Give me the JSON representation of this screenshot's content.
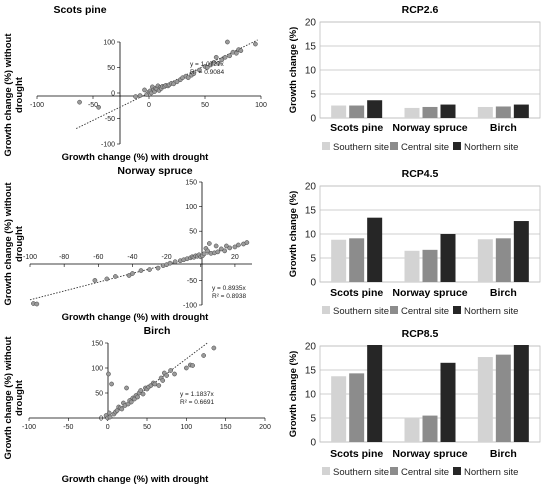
{
  "chart_data": [
    {
      "type": "scatter",
      "title": "Scots pine",
      "xlabel": "Growth change (%) with drought",
      "ylabel": "Growth change (%) without drought",
      "xlim": [
        -100,
        100
      ],
      "ylim": [
        -100,
        100
      ],
      "xticks": [
        -100,
        -50,
        0,
        50,
        100
      ],
      "yticks": [
        -100,
        -50,
        0,
        50,
        100
      ],
      "equation": "y = 1.0727x",
      "r2": "R² = 0.9084",
      "trend_slope": 1.0727,
      "trend_range": [
        -65,
        97
      ],
      "points": [
        [
          -62,
          -18
        ],
        [
          -45,
          -28
        ],
        [
          -12,
          -7
        ],
        [
          -8,
          -5
        ],
        [
          -4,
          6
        ],
        [
          -2,
          -3
        ],
        [
          0,
          2
        ],
        [
          1,
          4
        ],
        [
          2,
          0
        ],
        [
          3,
          12
        ],
        [
          4,
          6
        ],
        [
          5,
          3
        ],
        [
          6,
          9
        ],
        [
          7,
          8
        ],
        [
          8,
          14
        ],
        [
          9,
          5
        ],
        [
          10,
          11
        ],
        [
          11,
          9
        ],
        [
          12,
          13
        ],
        [
          14,
          13
        ],
        [
          15,
          15
        ],
        [
          17,
          14
        ],
        [
          18,
          16
        ],
        [
          20,
          19
        ],
        [
          22,
          18
        ],
        [
          25,
          22
        ],
        [
          28,
          26
        ],
        [
          30,
          30
        ],
        [
          33,
          33
        ],
        [
          35,
          30
        ],
        [
          38,
          35
        ],
        [
          40,
          38
        ],
        [
          45,
          45
        ],
        [
          50,
          52
        ],
        [
          52,
          50
        ],
        [
          55,
          55
        ],
        [
          58,
          60
        ],
        [
          60,
          70
        ],
        [
          62,
          58
        ],
        [
          65,
          65
        ],
        [
          68,
          70
        ],
        [
          70,
          100
        ],
        [
          72,
          73
        ],
        [
          75,
          80
        ],
        [
          78,
          78
        ],
        [
          80,
          85
        ],
        [
          82,
          83
        ],
        [
          95,
          96
        ]
      ]
    },
    {
      "type": "scatter",
      "title": "Norway spruce",
      "xlabel": "Growth change (%) with drought",
      "ylabel": "Growth change (%) without drought",
      "xlim": [
        -100,
        30
      ],
      "ylim": [
        -100,
        150
      ],
      "xticks": [
        -100,
        -80,
        -60,
        -40,
        -20,
        0,
        20
      ],
      "yticks": [
        -100,
        -50,
        50,
        100,
        150
      ],
      "equation": "y = 0.8935x",
      "r2": "R² = 0.8938",
      "trend_slope": 0.8935,
      "trend_range": [
        -100,
        28
      ],
      "points": [
        [
          -98,
          -97
        ],
        [
          -96,
          -98
        ],
        [
          -62,
          -50
        ],
        [
          -55,
          -47
        ],
        [
          -50,
          -42
        ],
        [
          -42,
          -40
        ],
        [
          -40,
          -36
        ],
        [
          -35,
          -30
        ],
        [
          -30,
          -28
        ],
        [
          -25,
          -25
        ],
        [
          -22,
          -20
        ],
        [
          -20,
          -18
        ],
        [
          -18,
          -15
        ],
        [
          -15,
          -12
        ],
        [
          -12,
          -10
        ],
        [
          -10,
          -8
        ],
        [
          -8,
          -6
        ],
        [
          -6,
          -4
        ],
        [
          -5,
          -2
        ],
        [
          -4,
          -3
        ],
        [
          -3,
          0
        ],
        [
          -2,
          -1
        ],
        [
          -1,
          2
        ],
        [
          0,
          -2
        ],
        [
          1,
          0
        ],
        [
          2,
          4
        ],
        [
          3,
          15
        ],
        [
          4,
          10
        ],
        [
          5,
          25
        ],
        [
          6,
          5
        ],
        [
          8,
          6
        ],
        [
          9,
          20
        ],
        [
          10,
          8
        ],
        [
          12,
          14
        ],
        [
          14,
          10
        ],
        [
          15,
          20
        ],
        [
          17,
          16
        ],
        [
          20,
          18
        ],
        [
          22,
          22
        ],
        [
          25,
          24
        ],
        [
          27,
          27
        ]
      ]
    },
    {
      "type": "scatter",
      "title": "Birch",
      "xlabel": "Growth change (%) with drought",
      "ylabel": "Growth change (%) without drought",
      "xlim": [
        -100,
        200
      ],
      "ylim": [
        0,
        150
      ],
      "xticks": [
        -100,
        -50,
        0,
        50,
        100,
        150,
        200
      ],
      "yticks": [
        0,
        50,
        100,
        150
      ],
      "equation": "y = 1.1837x",
      "r2": "R² = 0.6691",
      "trend_slope": 1.1837,
      "trend_range": [
        0,
        127
      ],
      "points": [
        [
          -2,
          5
        ],
        [
          0,
          0
        ],
        [
          1,
          88
        ],
        [
          2,
          10
        ],
        [
          3,
          2
        ],
        [
          5,
          68
        ],
        [
          8,
          8
        ],
        [
          10,
          12
        ],
        [
          12,
          15
        ],
        [
          14,
          22
        ],
        [
          16,
          20
        ],
        [
          18,
          18
        ],
        [
          20,
          30
        ],
        [
          22,
          25
        ],
        [
          24,
          60
        ],
        [
          26,
          28
        ],
        [
          28,
          35
        ],
        [
          30,
          32
        ],
        [
          32,
          40
        ],
        [
          34,
          38
        ],
        [
          36,
          45
        ],
        [
          38,
          42
        ],
        [
          40,
          50
        ],
        [
          42,
          55
        ],
        [
          45,
          48
        ],
        [
          48,
          60
        ],
        [
          50,
          58
        ],
        [
          52,
          62
        ],
        [
          55,
          65
        ],
        [
          58,
          70
        ],
        [
          60,
          68
        ],
        [
          65,
          65
        ],
        [
          68,
          80
        ],
        [
          70,
          75
        ],
        [
          72,
          90
        ],
        [
          75,
          85
        ],
        [
          80,
          95
        ],
        [
          85,
          88
        ],
        [
          100,
          100
        ],
        [
          105,
          106
        ],
        [
          108,
          105
        ],
        [
          122,
          125
        ],
        [
          135,
          140
        ]
      ]
    },
    {
      "type": "bar",
      "title": "RCP2.6",
      "ylabel": "Growth change (%)",
      "ylim": [
        0,
        20
      ],
      "yticks": [
        0,
        5,
        10,
        15,
        20
      ],
      "categories": [
        "Scots pine",
        "Norway spruce",
        "Birch"
      ],
      "series": [
        {
          "name": "Southern site",
          "values": [
            2.6,
            2.1,
            2.3
          ]
        },
        {
          "name": "Central site",
          "values": [
            2.6,
            2.3,
            2.4
          ]
        },
        {
          "name": "Northern site",
          "values": [
            3.7,
            2.8,
            2.8
          ]
        }
      ],
      "legend": "bottom"
    },
    {
      "type": "bar",
      "title": "RCP4.5",
      "ylabel": "Growth change (%)",
      "ylim": [
        0,
        20
      ],
      "yticks": [
        0,
        5,
        10,
        15,
        20
      ],
      "categories": [
        "Scots pine",
        "Norway spruce",
        "Birch"
      ],
      "series": [
        {
          "name": "Southern site",
          "values": [
            8.8,
            6.5,
            8.9
          ]
        },
        {
          "name": "Central site",
          "values": [
            9.1,
            6.7,
            9.1
          ]
        },
        {
          "name": "Northern site",
          "values": [
            13.4,
            10.0,
            12.7
          ]
        }
      ],
      "legend": "bottom"
    },
    {
      "type": "bar",
      "title": "RCP8.5",
      "ylabel": "Growth change (%)",
      "ylim": [
        0,
        20
      ],
      "yticks": [
        0,
        5,
        10,
        15,
        20
      ],
      "categories": [
        "Scots pine",
        "Norway spruce",
        "Birch"
      ],
      "series": [
        {
          "name": "Southern site",
          "values": [
            13.7,
            5.0,
            17.7
          ]
        },
        {
          "name": "Central site",
          "values": [
            14.3,
            5.5,
            18.2
          ]
        },
        {
          "name": "Northern site",
          "values": [
            20.5,
            16.5,
            20.5
          ]
        }
      ],
      "legend": "bottom"
    }
  ],
  "colors": {
    "southern": "#d3d3d3",
    "central": "#8c8c8c",
    "northern": "#262626",
    "marker_fill": "#9b9b9b",
    "grid": "#bfbfbf"
  }
}
